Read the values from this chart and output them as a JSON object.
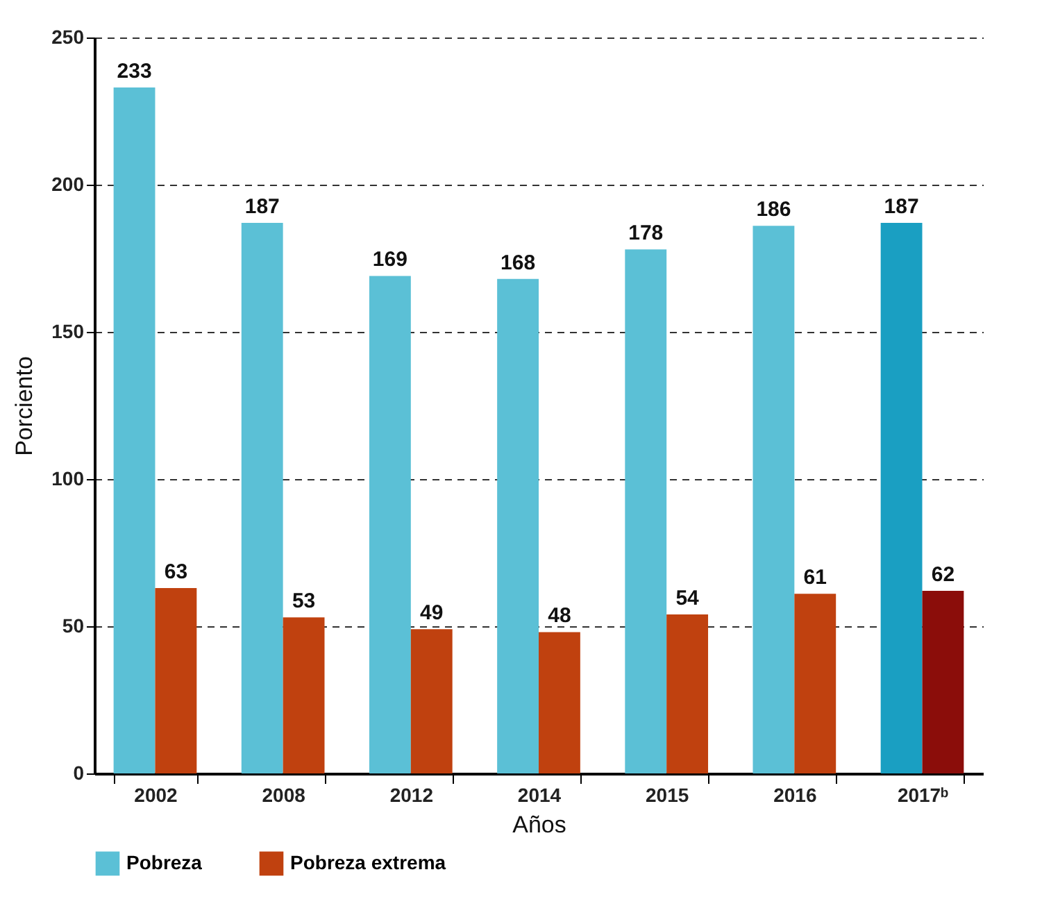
{
  "chart_data": {
    "type": "bar",
    "xlabel": "Años",
    "ylabel": "Porciento",
    "categories": [
      "2002",
      "2008",
      "2012",
      "2014",
      "2015",
      "2016",
      "2017ᵇ"
    ],
    "series": [
      {
        "name": "Pobreza",
        "color": "#5bc0d6",
        "colors": [
          "#5bc0d6",
          "#5bc0d6",
          "#5bc0d6",
          "#5bc0d6",
          "#5bc0d6",
          "#5bc0d6",
          "#1a9fc2"
        ],
        "values": [
          233,
          187,
          169,
          168,
          178,
          186,
          187
        ]
      },
      {
        "name": "Pobreza extrema",
        "color": "#c0410f",
        "colors": [
          "#c0410f",
          "#c0410f",
          "#c0410f",
          "#c0410f",
          "#c0410f",
          "#c0410f",
          "#8b0d0a"
        ],
        "values": [
          63,
          53,
          49,
          48,
          54,
          61,
          62
        ]
      }
    ],
    "ylim": [
      0,
      250
    ],
    "yticks": [
      0,
      50,
      100,
      150,
      200,
      250
    ],
    "grid": "y",
    "legend": "bottom left",
    "data_labels": true
  }
}
